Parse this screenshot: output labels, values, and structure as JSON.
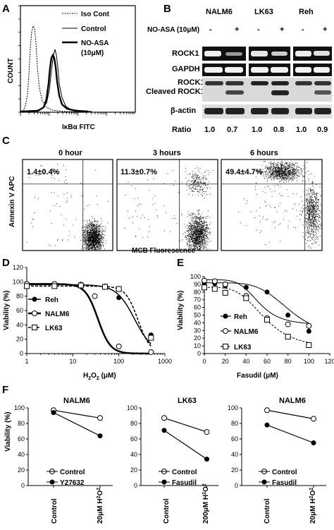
{
  "panels": {
    "A": "A",
    "B": "B",
    "C": "C",
    "D": "D",
    "E": "E",
    "F": "F"
  },
  "panel_a": {
    "legend": [
      "Iso Cont",
      "Control",
      "NO-ASA",
      "(10μM)"
    ],
    "ylabel": "COUNT",
    "xlabel": "IκBα FITC"
  },
  "panel_b": {
    "cell_lines": [
      "NALM6",
      "LK63",
      "Reh"
    ],
    "treatment_label": "NO-ASA (10μM)",
    "signs": [
      "-",
      "+",
      "-",
      "+",
      "-",
      "+"
    ],
    "rows": [
      "ROCK1",
      "GAPDH",
      "ROCK1",
      "Cleaved ROCK1",
      "β-actin"
    ],
    "ratio_label": "Ratio",
    "ratios": [
      "1.0",
      "0.7",
      "1.0",
      "0.8",
      "1.0",
      "0.9"
    ]
  },
  "panel_c": {
    "titles": [
      "0 hour",
      "3 hours",
      "6 hours"
    ],
    "percents": [
      "1.4±0.4%",
      "11.3±0.7%",
      "49.4±4.7%"
    ],
    "ylabel": "Annexin V APC",
    "xlabel": "MCB Fluorescence"
  },
  "chart_data": [
    {
      "id": "D",
      "type": "line",
      "xlabel": "H2O2 (μM)",
      "ylabel": "Viability (%)",
      "xscale": "log",
      "xlim": [
        1,
        1000
      ],
      "ylim": [
        0,
        120
      ],
      "yticks": [
        "0",
        "20",
        "40",
        "60",
        "80",
        "100",
        "120"
      ],
      "xticks": [
        "1",
        "10",
        "100",
        "1000"
      ],
      "series": [
        {
          "name": "Reh",
          "x": [
            1,
            4,
            15,
            50,
            100,
            500
          ],
          "y": [
            95,
            95,
            96,
            94,
            78,
            26
          ]
        },
        {
          "name": "NALM6",
          "x": [
            1,
            4,
            15,
            30,
            100,
            500
          ],
          "y": [
            97,
            97,
            96,
            80,
            10,
            2
          ]
        },
        {
          "name": "LK63",
          "x": [
            1,
            4,
            15,
            50,
            100,
            500
          ],
          "y": [
            94,
            94,
            95,
            93,
            90,
            22
          ]
        }
      ]
    },
    {
      "id": "E",
      "type": "line",
      "xlabel": "Fasudil (μM)",
      "ylabel": "Viability (%)",
      "xlim": [
        0,
        120
      ],
      "ylim": [
        0,
        100
      ],
      "yticks": [
        "0",
        "10",
        "20",
        "30",
        "40",
        "50",
        "60",
        "70",
        "80",
        "90",
        "100"
      ],
      "xticks": [
        "0",
        "20",
        "40",
        "60",
        "80",
        "100",
        "120"
      ],
      "series": [
        {
          "name": "Reh",
          "x": [
            0,
            10,
            20,
            40,
            60,
            80,
            100
          ],
          "y": [
            92,
            91,
            88,
            86,
            80,
            50,
            29
          ]
        },
        {
          "name": "NALM6",
          "x": [
            0,
            10,
            20,
            40,
            60,
            80,
            100
          ],
          "y": [
            95,
            94,
            90,
            75,
            46,
            38,
            36
          ]
        },
        {
          "name": "LK63",
          "x": [
            0,
            10,
            20,
            40,
            60,
            80,
            100
          ],
          "y": [
            86,
            84,
            79,
            72,
            44,
            22,
            11
          ]
        }
      ]
    },
    {
      "id": "F1",
      "type": "line",
      "title": "NALM6",
      "ylabel": "Viability (%)",
      "categories": [
        "Control",
        "20μM H2O2"
      ],
      "ylim": [
        0,
        100
      ],
      "yticks": [
        "0",
        "20",
        "40",
        "60",
        "80",
        "100"
      ],
      "series": [
        {
          "name": "Control",
          "values": [
            97,
            87
          ]
        },
        {
          "name": "Y27632",
          "values": [
            94,
            64
          ]
        }
      ]
    },
    {
      "id": "F2",
      "type": "line",
      "title": "LK63",
      "categories": [
        "Control",
        "200μM H2O2"
      ],
      "ylim": [
        0,
        100
      ],
      "yticks": [
        "0",
        "20",
        "40",
        "60",
        "80",
        "100"
      ],
      "series": [
        {
          "name": "Control",
          "values": [
            87,
            69
          ]
        },
        {
          "name": "Fasudil",
          "values": [
            71,
            34
          ]
        }
      ]
    },
    {
      "id": "F3",
      "type": "line",
      "title": "NALM6",
      "categories": [
        "Control",
        "20μM H2O2"
      ],
      "ylim": [
        0,
        100
      ],
      "yticks": [
        "0",
        "20",
        "40",
        "60",
        "80",
        "100"
      ],
      "series": [
        {
          "name": "Control",
          "values": [
            97,
            86
          ]
        },
        {
          "name": "Fasudil",
          "values": [
            78,
            55
          ]
        }
      ]
    }
  ]
}
